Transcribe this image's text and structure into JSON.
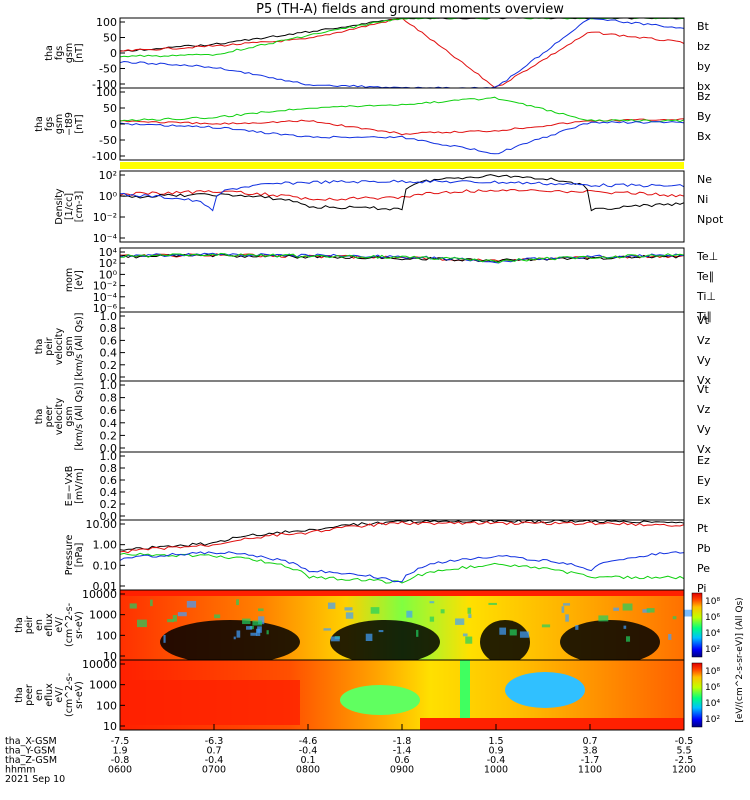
{
  "title": "P5 (TH-A) fields and ground moments overview",
  "colors": {
    "black": "#000000",
    "red": "#e01010",
    "green": "#10d010",
    "blue": "#1030e0",
    "yellow": "#ffff00"
  },
  "panels": [
    {
      "key": "fgs_gsm",
      "ylabel": [
        "tha",
        "fgs",
        "gsm",
        "[nT]"
      ],
      "ticks": [
        "100",
        "50",
        "0",
        "-50",
        "-100"
      ],
      "legend": [
        {
          "name": "Bt",
          "color": "black"
        },
        {
          "name": "bz",
          "color": "red"
        },
        {
          "name": "by",
          "color": "green"
        },
        {
          "name": "bx",
          "color": "blue"
        }
      ]
    },
    {
      "key": "fgs_gsm_sub",
      "ylabel": [
        "tha",
        "fgs",
        "gsm",
        "−t89",
        "[nT]"
      ],
      "ticks": [
        "100",
        "50",
        "0",
        "-50",
        "-100"
      ],
      "legend": [
        {
          "name": "Bz",
          "color": "red"
        },
        {
          "name": "By",
          "color": "green"
        },
        {
          "name": "Bx",
          "color": "blue"
        }
      ]
    },
    {
      "key": "density",
      "ylabel": [
        "Density",
        "[1/cc]",
        "[cm-3]"
      ],
      "ticks": [
        "10²",
        "10⁰",
        "10⁻²",
        "10⁻⁴"
      ],
      "legend": [
        {
          "name": "Ne",
          "color": "red"
        },
        {
          "name": "Ni",
          "color": "black"
        },
        {
          "name": "Npot",
          "color": "blue"
        }
      ]
    },
    {
      "key": "temp",
      "ylabel": [
        "mom",
        "[eV]"
      ],
      "ticks": [
        "10⁴",
        "10²",
        "10⁰",
        "10⁻²",
        "10⁻⁴",
        "10⁻⁶"
      ],
      "legend": [
        {
          "name": "Te⊥",
          "color": "red"
        },
        {
          "name": "Te∥",
          "color": "black"
        },
        {
          "name": "Ti⊥",
          "color": "blue"
        },
        {
          "name": "Ti∥",
          "color": "green"
        }
      ]
    },
    {
      "key": "peir_vel",
      "ylabel": [
        "tha",
        "peir",
        "velocity",
        "gsm",
        "[km/s (All Qs)]"
      ],
      "ticks": [
        "1.0",
        "0.8",
        "0.6",
        "0.4",
        "0.2",
        "0.0"
      ],
      "legend": [
        {
          "name": "Vt",
          "color": "black"
        },
        {
          "name": "Vz",
          "color": "red"
        },
        {
          "name": "Vy",
          "color": "green"
        },
        {
          "name": "Vx",
          "color": "blue"
        }
      ]
    },
    {
      "key": "peer_vel",
      "ylabel": [
        "tha",
        "peer",
        "velocity",
        "gsm",
        "[km/s (All Qs)]"
      ],
      "ticks": [
        "1.0",
        "0.8",
        "0.6",
        "0.4",
        "0.2",
        "0.0"
      ],
      "legend": [
        {
          "name": "Vt",
          "color": "black"
        },
        {
          "name": "Vz",
          "color": "red"
        },
        {
          "name": "Vy",
          "color": "green"
        },
        {
          "name": "Vx",
          "color": "blue"
        }
      ]
    },
    {
      "key": "efield",
      "ylabel": [
        "E=−VxB",
        "[mV/m]"
      ],
      "ticks": [
        "1.0",
        "0.8",
        "0.6",
        "0.4",
        "0.2",
        "0.0"
      ],
      "legend": [
        {
          "name": "Ez",
          "color": "red"
        },
        {
          "name": "Ey",
          "color": "green"
        },
        {
          "name": "Ex",
          "color": "blue"
        }
      ]
    },
    {
      "key": "pressure",
      "ylabel": [
        "Pressure",
        "[nPa]"
      ],
      "ticks": [
        "10.00",
        "1.00",
        "0.10",
        "0.01"
      ],
      "legend": [
        {
          "name": "Pt",
          "color": "black"
        },
        {
          "name": "Pb",
          "color": "red"
        },
        {
          "name": "Pe",
          "color": "green"
        },
        {
          "name": "Pi",
          "color": "blue"
        }
      ]
    },
    {
      "key": "peir_spec",
      "ylabel": [
        "tha",
        "peir",
        "en",
        "eflux",
        "eV/",
        "(cm^2-s-",
        "sr-eV)"
      ],
      "ticks": [
        "10000",
        "1000",
        "100",
        "10"
      ],
      "legend": []
    },
    {
      "key": "peer_spec",
      "ylabel": [
        "tha",
        "peer",
        "en",
        "eflux",
        "eV/",
        "(cm^2-s-",
        "sr-eV)"
      ],
      "ticks": [
        "10000",
        "1000",
        "100",
        "10"
      ],
      "legend": []
    }
  ],
  "colorbar": {
    "label": "[eV/(cm^2-s-sr-eV)] (All Qs)",
    "ticks": [
      "10⁸",
      "10⁶",
      "10⁴",
      "10²"
    ]
  },
  "xaxis": {
    "rows": [
      {
        "label": "tha_X-GSM",
        "values": [
          "-7.5",
          "-6.3",
          "-4.6",
          "-1.8",
          "1.5",
          "0.7",
          "-0.5"
        ]
      },
      {
        "label": "tha_Y-GSM",
        "values": [
          "1.9",
          "0.7",
          "-0.4",
          "-1.4",
          "0.9",
          "3.8",
          "5.5"
        ]
      },
      {
        "label": "tha_Z-GSM",
        "values": [
          "-0.8",
          "-0.4",
          "0.1",
          "0.6",
          "-0.4",
          "-1.7",
          "-2.5"
        ]
      },
      {
        "label": "hhmm",
        "values": [
          "0600",
          "0700",
          "0800",
          "0900",
          "1000",
          "1100",
          "1200"
        ]
      }
    ],
    "date": "2021 Sep 10"
  },
  "chart_data": [
    {
      "type": "line",
      "title": "P5 (TH-A) fields and ground moments overview",
      "ylabel": "tha fgs gsm [nT]",
      "ylim": [
        -100,
        100
      ],
      "x": [
        "0600",
        "0700",
        "0800",
        "0900",
        "1000",
        "1100",
        "1200"
      ],
      "series": [
        {
          "name": "Bt",
          "values": [
            5,
            25,
            60,
            100,
            100,
            100,
            100
          ]
        },
        {
          "name": "bz",
          "values": [
            5,
            20,
            40,
            100,
            -100,
            60,
            30
          ]
        },
        {
          "name": "by",
          "values": [
            -10,
            -5,
            50,
            100,
            100,
            100,
            100
          ]
        },
        {
          "name": "bx",
          "values": [
            -25,
            -40,
            -90,
            -100,
            -100,
            100,
            70
          ]
        }
      ]
    },
    {
      "type": "line",
      "ylabel": "tha fgs gsm -t89 [nT]",
      "ylim": [
        -120,
        100
      ],
      "x": [
        "0600",
        "0700",
        "0800",
        "0900",
        "1000",
        "1100",
        "1200"
      ],
      "series": [
        {
          "name": "Bz",
          "values": [
            0,
            -10,
            0,
            -40,
            -30,
            0,
            5
          ]
        },
        {
          "name": "By",
          "values": [
            0,
            10,
            40,
            50,
            70,
            0,
            0
          ]
        },
        {
          "name": "Bx",
          "values": [
            -10,
            -20,
            -50,
            -50,
            -100,
            -5,
            -5
          ]
        }
      ]
    },
    {
      "type": "line",
      "ylabel": "Density [1/cc] [cm-3]",
      "log": true,
      "ylim": [
        1e-05,
        300
      ],
      "x": [
        "0600",
        "0700",
        "0800",
        "0900",
        "1000",
        "1100",
        "1200"
      ],
      "series": [
        {
          "name": "Ne",
          "values": [
            1,
            2,
            0.3,
            0.5,
            3,
            2,
            0.6
          ]
        },
        {
          "name": "Ni",
          "values": [
            0.5,
            1,
            0.05,
            0.03,
            100,
            0.02,
            0.1
          ]
        },
        {
          "name": "Npot",
          "values": [
            1,
            1e-05,
            20,
            25,
            20,
            10,
            8
          ]
        }
      ]
    },
    {
      "type": "line",
      "ylabel": "mom [eV]",
      "log": true,
      "ylim": [
        1e-06,
        10000
      ],
      "x": [
        "0600",
        "0700",
        "0800",
        "0900",
        "1000",
        "1100",
        "1200"
      ],
      "series": [
        {
          "name": "Te⊥",
          "values": [
            500,
            800,
            500,
            300,
            100,
            300,
            600
          ]
        },
        {
          "name": "Te∥",
          "values": [
            400,
            700,
            400,
            250,
            100,
            250,
            500
          ]
        },
        {
          "name": "Ti⊥",
          "values": [
            600,
            1000,
            700,
            400,
            50,
            400,
            900
          ]
        },
        {
          "name": "Ti∥",
          "values": [
            500,
            900,
            600,
            350,
            60,
            350,
            800
          ]
        }
      ]
    },
    {
      "type": "line",
      "ylabel": "tha peir velocity gsm [km/s (All Qs)]",
      "ylim": [
        0,
        1
      ],
      "series": [
        {
          "name": "Vt",
          "values": []
        },
        {
          "name": "Vz",
          "values": []
        },
        {
          "name": "Vy",
          "values": []
        },
        {
          "name": "Vx",
          "values": []
        }
      ]
    },
    {
      "type": "line",
      "ylabel": "tha peer velocity gsm [km/s (All Qs)]",
      "ylim": [
        0,
        1
      ],
      "series": [
        {
          "name": "Vt",
          "values": []
        },
        {
          "name": "Vz",
          "values": []
        },
        {
          "name": "Vy",
          "values": []
        },
        {
          "name": "Vx",
          "values": []
        }
      ]
    },
    {
      "type": "line",
      "ylabel": "E=-VxB [mV/m]",
      "ylim": [
        0,
        1
      ],
      "series": [
        {
          "name": "Ez",
          "values": []
        },
        {
          "name": "Ey",
          "values": []
        },
        {
          "name": "Ex",
          "values": []
        }
      ]
    },
    {
      "type": "line",
      "ylabel": "Pressure [nPa]",
      "log": true,
      "ylim": [
        0.004,
        30
      ],
      "x": [
        "0600",
        "0700",
        "0800",
        "0900",
        "1000",
        "1100",
        "1200"
      ],
      "series": [
        {
          "name": "Pt",
          "values": [
            0.6,
            1.5,
            8,
            25,
            25,
            25,
            20
          ]
        },
        {
          "name": "Pb",
          "values": [
            0.5,
            1.2,
            6,
            20,
            20,
            20,
            15
          ]
        },
        {
          "name": "Pe",
          "values": [
            0.4,
            0.3,
            0.02,
            0.01,
            0.1,
            0.02,
            0.02
          ]
        },
        {
          "name": "Pi",
          "values": [
            0.2,
            0.5,
            0.05,
            0.01,
            0.3,
            0.05,
            0.5
          ]
        }
      ]
    },
    {
      "type": "heatmap",
      "ylabel": "tha peir en eflux eV/(cm^2-s-sr-eV)",
      "log": true,
      "ylim": [
        5,
        30000
      ]
    },
    {
      "type": "heatmap",
      "ylabel": "tha peer en eflux eV/(cm^2-s-sr-eV)",
      "log": true,
      "ylim": [
        5,
        30000
      ]
    }
  ]
}
